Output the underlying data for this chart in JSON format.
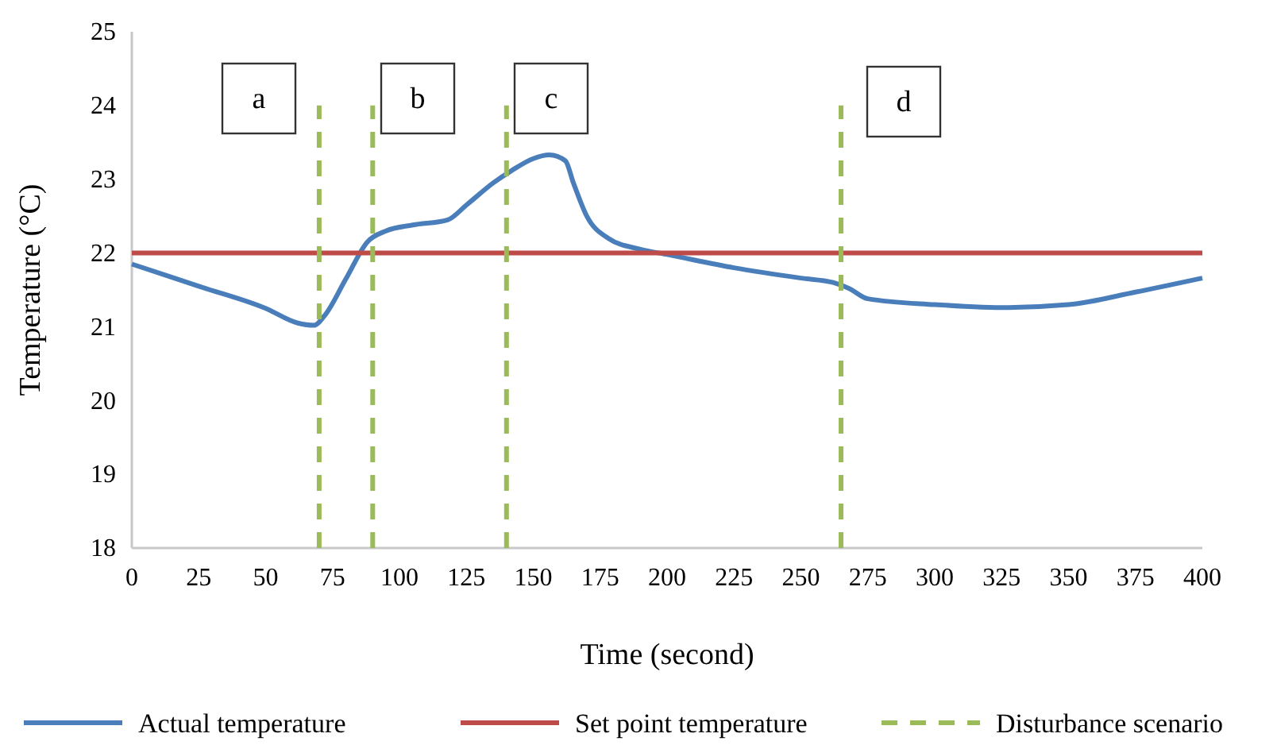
{
  "chart_data": {
    "type": "line",
    "xlabel": "Time (second)",
    "ylabel": "Temperature (°C)",
    "xlim": [
      0,
      400
    ],
    "xticks": [
      0,
      25,
      50,
      75,
      100,
      125,
      150,
      175,
      200,
      225,
      250,
      275,
      300,
      325,
      350,
      375,
      400
    ],
    "ylim": [
      18,
      25
    ],
    "yticks": [
      18,
      19,
      20,
      21,
      22,
      23,
      24,
      25
    ],
    "grid": false,
    "legend": "bottom",
    "marker": "none",
    "annotations": [
      "a",
      "b",
      "c",
      "d"
    ],
    "series": [
      {
        "name": "Actual temperature",
        "color": "#4a7ebb",
        "line_style": "solid",
        "x": [
          0,
          25,
          50,
          62,
          68,
          72,
          80,
          88,
          95,
          105,
          118,
          125,
          135,
          142,
          150,
          156,
          162,
          165,
          170,
          178,
          190,
          200,
          225,
          250,
          262,
          268,
          275,
          300,
          325,
          350,
          375,
          400
        ],
        "values": [
          21.85,
          21.55,
          21.25,
          21.05,
          21.02,
          21.15,
          21.65,
          22.15,
          22.3,
          22.38,
          22.45,
          22.65,
          22.95,
          23.12,
          23.28,
          23.33,
          23.25,
          22.95,
          22.5,
          22.2,
          22.05,
          21.98,
          21.8,
          21.66,
          21.6,
          21.52,
          21.38,
          21.3,
          21.26,
          21.3,
          21.47,
          21.66
        ]
      },
      {
        "name": "Set point temperature",
        "color": "#be4b48",
        "line_style": "solid",
        "x": [
          0,
          400
        ],
        "values": [
          22,
          22
        ]
      },
      {
        "name": "Disturbance scenario",
        "color": "#9bbb59",
        "line_style": "dashed",
        "x": [
          70,
          70,
          null,
          90,
          90,
          null,
          140,
          140,
          null,
          265,
          265
        ],
        "values": [
          18,
          24,
          null,
          18,
          24,
          null,
          18,
          24,
          null,
          18,
          24
        ]
      }
    ]
  }
}
